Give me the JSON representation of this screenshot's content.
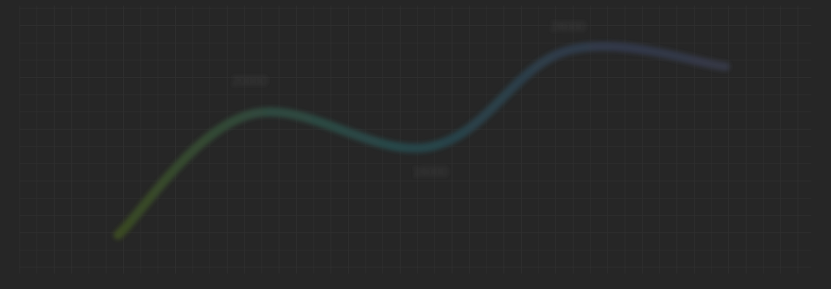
{
  "chart_data": {
    "type": "line",
    "title": "",
    "xlabel": "",
    "ylabel": "",
    "grid": true,
    "legend": "none",
    "ylim": [
      4000,
      30000
    ],
    "series": [
      {
        "points": [
          {
            "x": 0,
            "y": 5000,
            "label": ""
          },
          {
            "x": 1,
            "y": 20000,
            "label": "20000"
          },
          {
            "x": 2,
            "y": 16000,
            "label": "16000"
          },
          {
            "x": 3,
            "y": 28000,
            "label": "28000"
          },
          {
            "x": 4,
            "y": 26000,
            "label": ""
          }
        ]
      }
    ],
    "colors": {
      "background": "#262626",
      "grid": "#2f2f2f",
      "line_gradient": [
        "#3a4a22",
        "#2f4a3f",
        "#26454a",
        "#2f3a4a",
        "#353845"
      ],
      "label": "#3d3d3d"
    }
  }
}
